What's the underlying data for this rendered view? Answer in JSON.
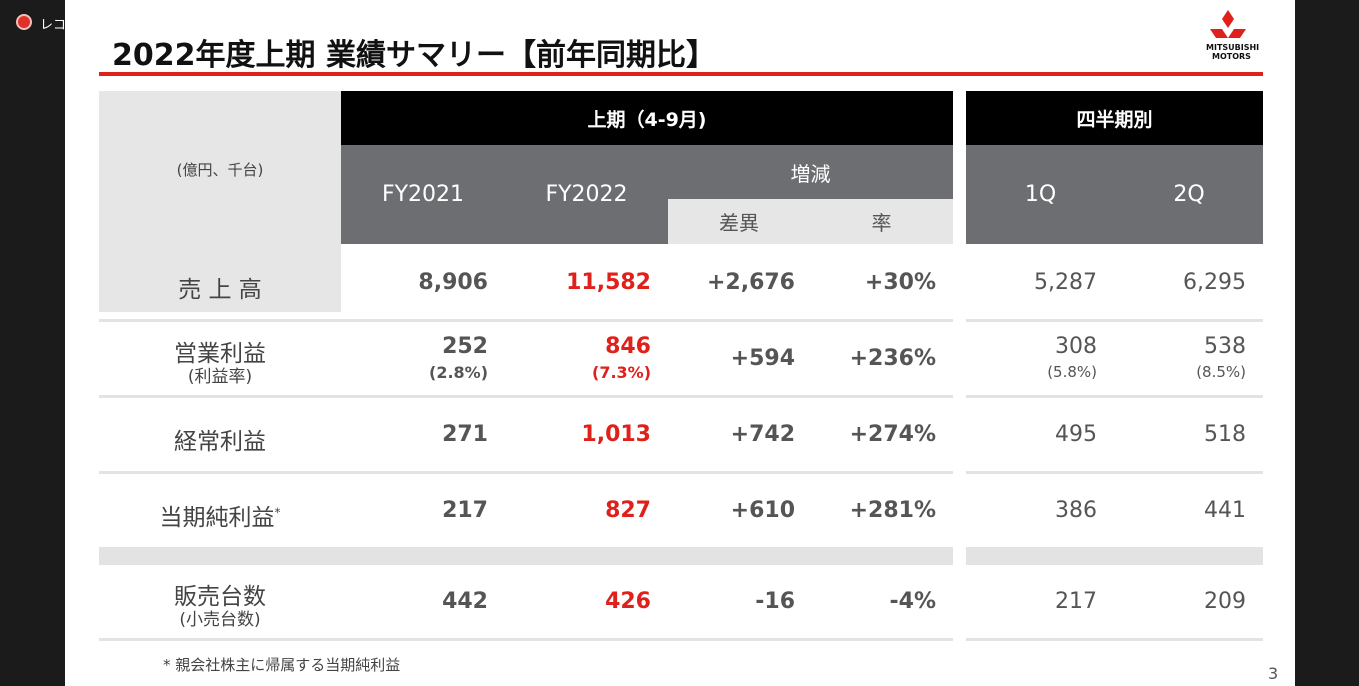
{
  "indicator": "レコ",
  "slide": {
    "title": "2022年度上期 業績サマリー【前年同期比】",
    "logo": [
      "MITSUBISHI",
      "MOTORS"
    ],
    "page_number": "3",
    "footnote": "* 親会社株主に帰属する当期純利益"
  },
  "table": {
    "unit": "(億円、千台)",
    "first_half": "上期（4-9月)",
    "quarterly": "四半期別",
    "change": "増減",
    "columns": [
      "FY2021",
      "FY2022",
      "差異",
      "率",
      "1Q",
      "2Q"
    ],
    "rows": [
      {
        "label": "売 上 高",
        "values": [
          "8,906",
          "11,582",
          "+2,676",
          "+30%",
          "5,287",
          "6,295"
        ]
      },
      {
        "label": "営業利益",
        "sublabel": "(利益率)",
        "values": [
          "252",
          "846",
          "+594",
          "+236%",
          "308",
          "538"
        ],
        "subvalues": [
          "(2.8%)",
          "(7.3%)",
          "(5.8%)",
          "(8.5%)"
        ]
      },
      {
        "label": "経常利益",
        "values": [
          "271",
          "1,013",
          "+742",
          "+274%",
          "495",
          "518"
        ]
      },
      {
        "label": "当期純利益",
        "note_mark": "*",
        "values": [
          "217",
          "827",
          "+610",
          "+281%",
          "386",
          "441"
        ]
      },
      {
        "label": "販売台数",
        "sublabel": "(小売台数)",
        "values": [
          "442",
          "426",
          "-16",
          "-4%",
          "217",
          "209"
        ]
      }
    ]
  }
}
